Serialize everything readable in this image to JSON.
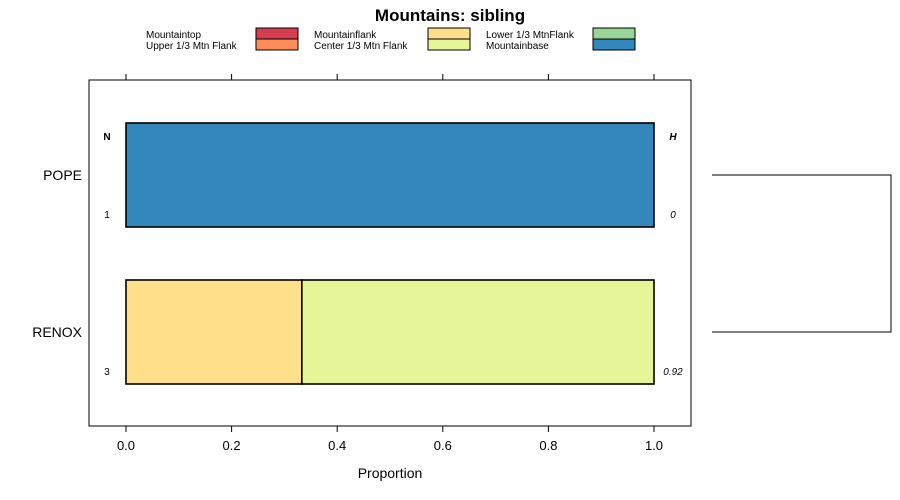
{
  "chart_data": {
    "type": "bar",
    "orientation": "horizontal",
    "stacked": true,
    "title": "Mountains: sibling",
    "xlabel": "Proportion",
    "ylabel": "",
    "xlim": [
      -0.07,
      1.07
    ],
    "x_ticks": [
      0.0,
      0.2,
      0.4,
      0.6,
      0.8,
      1.0
    ],
    "x_tick_labels": [
      "0.0",
      "0.2",
      "0.4",
      "0.6",
      "0.8",
      "1.0"
    ],
    "categories": [
      "POPE",
      "RENOX"
    ],
    "series": [
      {
        "name": "Mountaintop",
        "color": "#d53e4f",
        "values": [
          0,
          0
        ]
      },
      {
        "name": "Upper 1/3 Mtn Flank",
        "color": "#fc8d59",
        "values": [
          0,
          0
        ]
      },
      {
        "name": "Mountainflank",
        "color": "#fee08b",
        "values": [
          0,
          0.333
        ]
      },
      {
        "name": "Center 1/3 Mtn Flank",
        "color": "#e6f598",
        "values": [
          0,
          0.667
        ]
      },
      {
        "name": "Lower 1/3 MtnFlank",
        "color": "#99d594",
        "values": [
          0,
          0
        ]
      },
      {
        "name": "Mountainbase",
        "color": "#3288bd",
        "values": [
          1.0,
          0
        ]
      }
    ],
    "legend_columns": [
      [
        "Mountaintop",
        "Upper 1/3 Mtn Flank"
      ],
      [
        "Mountainflank",
        "Center 1/3 Mtn Flank"
      ],
      [
        "Lower 1/3 MtnFlank",
        "Mountainbase"
      ]
    ],
    "legend_position": "top",
    "n_header": "N",
    "h_header": "H",
    "n_values": [
      "1",
      "3"
    ],
    "h_values": [
      "0",
      "0.92"
    ],
    "dendrogram": true
  }
}
